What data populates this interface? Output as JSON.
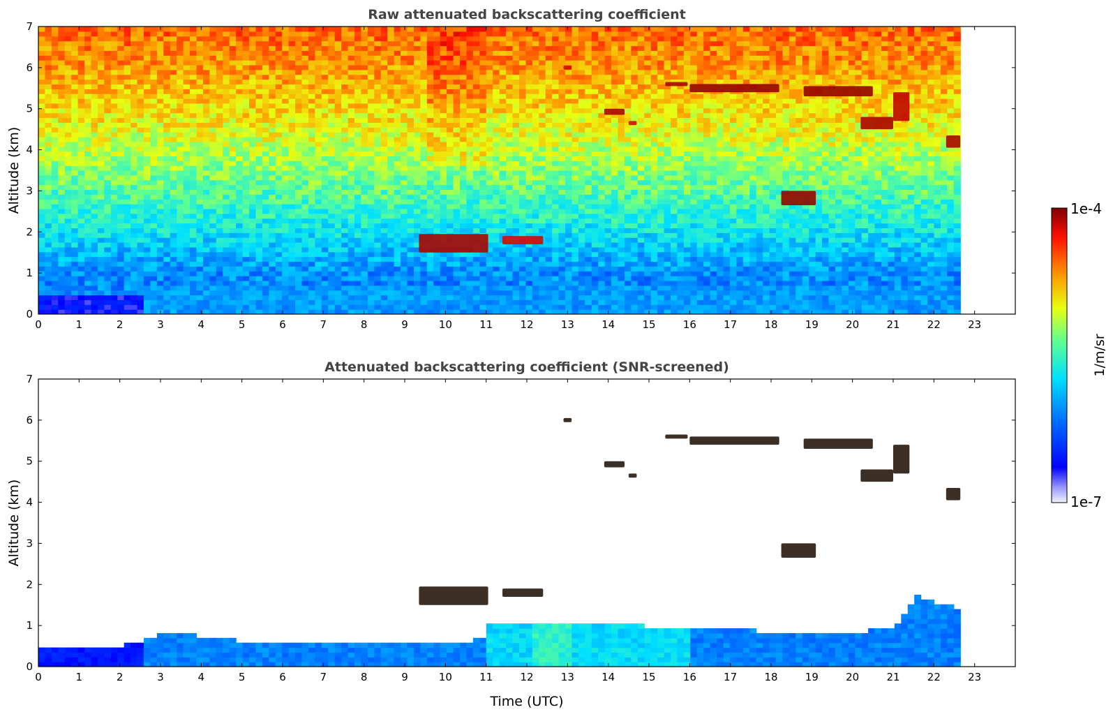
{
  "chart_data": [
    {
      "type": "heatmap",
      "title": "Raw attenuated backscattering coefficient",
      "xlabel": "",
      "ylabel": "Altitude (km)",
      "xlim": [
        0,
        24
      ],
      "ylim": [
        0,
        7
      ],
      "xticks": [
        "0",
        "1",
        "2",
        "3",
        "4",
        "5",
        "6",
        "7",
        "8",
        "9",
        "10",
        "11",
        "12",
        "13",
        "14",
        "15",
        "16",
        "17",
        "18",
        "19",
        "20",
        "21",
        "22",
        "23"
      ],
      "yticks": [
        "0",
        "1",
        "2",
        "3",
        "4",
        "5",
        "6",
        "7"
      ],
      "data_end_time": 22.65,
      "background_profile": [
        {
          "altitude": 0.0,
          "log10_beta": -5.9
        },
        {
          "altitude": 0.5,
          "log10_beta": -6.1
        },
        {
          "altitude": 1.0,
          "log10_beta": -6.05
        },
        {
          "altitude": 2.0,
          "log10_beta": -5.7
        },
        {
          "altitude": 3.0,
          "log10_beta": -5.4
        },
        {
          "altitude": 4.5,
          "log10_beta": -5.0
        },
        {
          "altitude": 6.0,
          "log10_beta": -4.7
        },
        {
          "altitude": 7.0,
          "log10_beta": -4.55
        }
      ],
      "cloud_layers": [
        {
          "t_start": 9.35,
          "t_end": 11.05,
          "alt_base": 1.5,
          "alt_top": 1.95,
          "log10_beta": -4.1
        },
        {
          "t_start": 11.4,
          "t_end": 12.4,
          "alt_base": 1.7,
          "alt_top": 1.9,
          "log10_beta": -4.2
        },
        {
          "t_start": 12.9,
          "t_end": 13.1,
          "alt_base": 5.95,
          "alt_top": 6.05,
          "log10_beta": -4.2
        },
        {
          "t_start": 13.9,
          "t_end": 14.4,
          "alt_base": 4.85,
          "alt_top": 5.0,
          "log10_beta": -4.1
        },
        {
          "t_start": 14.5,
          "t_end": 14.7,
          "alt_base": 4.6,
          "alt_top": 4.7,
          "log10_beta": -4.2
        },
        {
          "t_start": 15.4,
          "t_end": 15.95,
          "alt_base": 5.55,
          "alt_top": 5.65,
          "log10_beta": -4.1
        },
        {
          "t_start": 16.0,
          "t_end": 18.2,
          "alt_base": 5.4,
          "alt_top": 5.6,
          "log10_beta": -4.05
        },
        {
          "t_start": 18.8,
          "t_end": 20.5,
          "alt_base": 5.3,
          "alt_top": 5.55,
          "log10_beta": -4.05
        },
        {
          "t_start": 20.2,
          "t_end": 21.0,
          "alt_base": 4.5,
          "alt_top": 4.8,
          "log10_beta": -4.1
        },
        {
          "t_start": 21.0,
          "t_end": 21.4,
          "alt_base": 4.7,
          "alt_top": 5.4,
          "log10_beta": -4.15
        },
        {
          "t_start": 18.25,
          "t_end": 19.1,
          "alt_base": 2.65,
          "alt_top": 3.0,
          "log10_beta": -4.05
        },
        {
          "t_start": 22.3,
          "t_end": 22.65,
          "alt_base": 4.05,
          "alt_top": 4.35,
          "log10_beta": -4.1
        }
      ]
    },
    {
      "type": "heatmap",
      "title": "Attenuated backscattering coefficient (SNR-screened)",
      "xlabel": "Time (UTC)",
      "ylabel": "Altitude (km)",
      "xlim": [
        0,
        24
      ],
      "ylim": [
        0,
        7
      ],
      "xticks": [
        "0",
        "1",
        "2",
        "3",
        "4",
        "5",
        "6",
        "7",
        "8",
        "9",
        "10",
        "11",
        "12",
        "13",
        "14",
        "15",
        "16",
        "17",
        "18",
        "19",
        "20",
        "21",
        "22",
        "23"
      ],
      "yticks": [
        "0",
        "1",
        "2",
        "3",
        "4",
        "5",
        "6",
        "7"
      ],
      "data_end_time": 22.65,
      "boundary_layer_top": [
        {
          "time": 0,
          "altitude": 0.5
        },
        {
          "time": 2,
          "altitude": 0.5
        },
        {
          "time": 3,
          "altitude": 0.8
        },
        {
          "time": 4,
          "altitude": 0.75
        },
        {
          "time": 5,
          "altitude": 0.6
        },
        {
          "time": 7,
          "altitude": 0.55
        },
        {
          "time": 9,
          "altitude": 0.6
        },
        {
          "time": 10.9,
          "altitude": 0.65
        },
        {
          "time": 11,
          "altitude": 1.0
        },
        {
          "time": 13,
          "altitude": 1.05
        },
        {
          "time": 16,
          "altitude": 0.95
        },
        {
          "time": 18,
          "altitude": 0.85
        },
        {
          "time": 20,
          "altitude": 0.8
        },
        {
          "time": 21,
          "altitude": 1.0
        },
        {
          "time": 21.5,
          "altitude": 1.7
        },
        {
          "time": 22.65,
          "altitude": 1.4
        }
      ],
      "colorbar": {
        "label": "1/m/sr",
        "min_label": "1e-7",
        "max_label": "1e-4",
        "log10_min": -7,
        "log10_max": -4
      }
    }
  ]
}
